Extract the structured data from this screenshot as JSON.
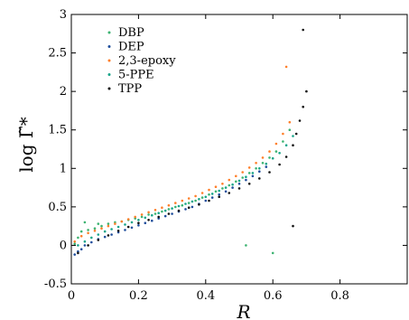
{
  "chart_data": {
    "type": "scatter",
    "title": "",
    "xlabel": "R",
    "ylabel": "log Γ̃*",
    "xlim": [
      0,
      1
    ],
    "ylim": [
      -0.5,
      3
    ],
    "xticks": [
      "0",
      "0.2",
      "0.4",
      "0.6",
      "0.8"
    ],
    "xtick_values": [
      0,
      0.2,
      0.4,
      0.6,
      0.8
    ],
    "yticks": [
      "-0.5",
      "0",
      "0.5",
      "1",
      "1.5",
      "2",
      "2.5",
      "3"
    ],
    "ytick_values": [
      -0.5,
      0,
      0.5,
      1,
      1.5,
      2,
      2.5,
      3
    ],
    "grid": false,
    "legend_position": "top-left",
    "series": [
      {
        "name": "DBP",
        "color": "#3cb371",
        "x": [
          0.01,
          0.02,
          0.03,
          0.05,
          0.07,
          0.09,
          0.11,
          0.13,
          0.15,
          0.17,
          0.19,
          0.21,
          0.23,
          0.25,
          0.27,
          0.29,
          0.31,
          0.33,
          0.35,
          0.37,
          0.39,
          0.41,
          0.43,
          0.45,
          0.47,
          0.49,
          0.51,
          0.53,
          0.55,
          0.57,
          0.59,
          0.61,
          0.63,
          0.65,
          0.52,
          0.6,
          0.04,
          0.08
        ],
        "y": [
          0.02,
          0.1,
          0.18,
          0.2,
          0.22,
          0.25,
          0.28,
          0.3,
          0.31,
          0.33,
          0.35,
          0.37,
          0.4,
          0.41,
          0.44,
          0.47,
          0.5,
          0.52,
          0.55,
          0.58,
          0.62,
          0.66,
          0.7,
          0.74,
          0.78,
          0.83,
          0.88,
          0.94,
          1.0,
          1.07,
          1.14,
          1.22,
          1.35,
          1.5,
          0.0,
          -0.1,
          0.3,
          0.28
        ]
      },
      {
        "name": "DEP",
        "color": "#1f4e9c",
        "x": [
          0.01,
          0.02,
          0.03,
          0.04,
          0.06,
          0.08,
          0.1,
          0.12,
          0.14,
          0.16,
          0.18,
          0.2,
          0.22,
          0.24,
          0.26,
          0.28,
          0.3,
          0.32,
          0.34,
          0.36,
          0.38,
          0.4,
          0.42,
          0.44,
          0.46,
          0.48,
          0.5,
          0.52,
          0.54,
          0.56,
          0.58
        ],
        "y": [
          -0.12,
          -0.08,
          -0.05,
          0.0,
          0.04,
          0.08,
          0.11,
          0.14,
          0.17,
          0.2,
          0.23,
          0.26,
          0.29,
          0.32,
          0.35,
          0.38,
          0.41,
          0.44,
          0.47,
          0.5,
          0.54,
          0.58,
          0.62,
          0.66,
          0.7,
          0.75,
          0.8,
          0.85,
          0.9,
          0.96,
          1.02
        ]
      },
      {
        "name": "2,3-epoxy",
        "color": "#ff7f2a",
        "x": [
          0.01,
          0.03,
          0.05,
          0.07,
          0.09,
          0.11,
          0.13,
          0.15,
          0.17,
          0.19,
          0.21,
          0.23,
          0.25,
          0.27,
          0.29,
          0.31,
          0.33,
          0.35,
          0.37,
          0.39,
          0.41,
          0.43,
          0.45,
          0.47,
          0.49,
          0.51,
          0.53,
          0.55,
          0.57,
          0.59,
          0.61,
          0.63,
          0.65,
          0.64
        ],
        "y": [
          0.05,
          0.12,
          0.16,
          0.19,
          0.22,
          0.25,
          0.28,
          0.31,
          0.34,
          0.37,
          0.4,
          0.43,
          0.46,
          0.49,
          0.52,
          0.55,
          0.58,
          0.61,
          0.64,
          0.68,
          0.72,
          0.76,
          0.8,
          0.85,
          0.9,
          0.95,
          1.01,
          1.07,
          1.14,
          1.22,
          1.32,
          1.45,
          1.6,
          2.32
        ]
      },
      {
        "name": "5-PPE",
        "color": "#17a589",
        "x": [
          0.02,
          0.04,
          0.06,
          0.08,
          0.1,
          0.12,
          0.14,
          0.16,
          0.18,
          0.2,
          0.22,
          0.24,
          0.26,
          0.28,
          0.3,
          0.32,
          0.34,
          0.36,
          0.38,
          0.4,
          0.42,
          0.44,
          0.46,
          0.48,
          0.5,
          0.52,
          0.54,
          0.56,
          0.58,
          0.6,
          0.62,
          0.64,
          0.66
        ],
        "y": [
          0.0,
          0.05,
          0.1,
          0.14,
          0.18,
          0.21,
          0.24,
          0.27,
          0.3,
          0.33,
          0.36,
          0.39,
          0.42,
          0.45,
          0.48,
          0.51,
          0.54,
          0.57,
          0.6,
          0.63,
          0.67,
          0.71,
          0.75,
          0.79,
          0.84,
          0.89,
          0.94,
          1.0,
          1.06,
          1.13,
          1.2,
          1.3,
          1.42
        ]
      },
      {
        "name": "TPP",
        "color": "#111111",
        "x": [
          0.02,
          0.05,
          0.08,
          0.11,
          0.14,
          0.17,
          0.2,
          0.23,
          0.26,
          0.29,
          0.32,
          0.35,
          0.38,
          0.41,
          0.44,
          0.47,
          0.5,
          0.53,
          0.56,
          0.59,
          0.62,
          0.64,
          0.66,
          0.67,
          0.68,
          0.69,
          0.7,
          0.69,
          0.66
        ],
        "y": [
          -0.1,
          0.0,
          0.07,
          0.13,
          0.19,
          0.24,
          0.29,
          0.33,
          0.37,
          0.41,
          0.45,
          0.49,
          0.53,
          0.58,
          0.63,
          0.68,
          0.74,
          0.8,
          0.87,
          0.95,
          1.05,
          1.15,
          1.3,
          1.45,
          1.62,
          1.8,
          2.0,
          2.8,
          0.25
        ]
      }
    ]
  }
}
